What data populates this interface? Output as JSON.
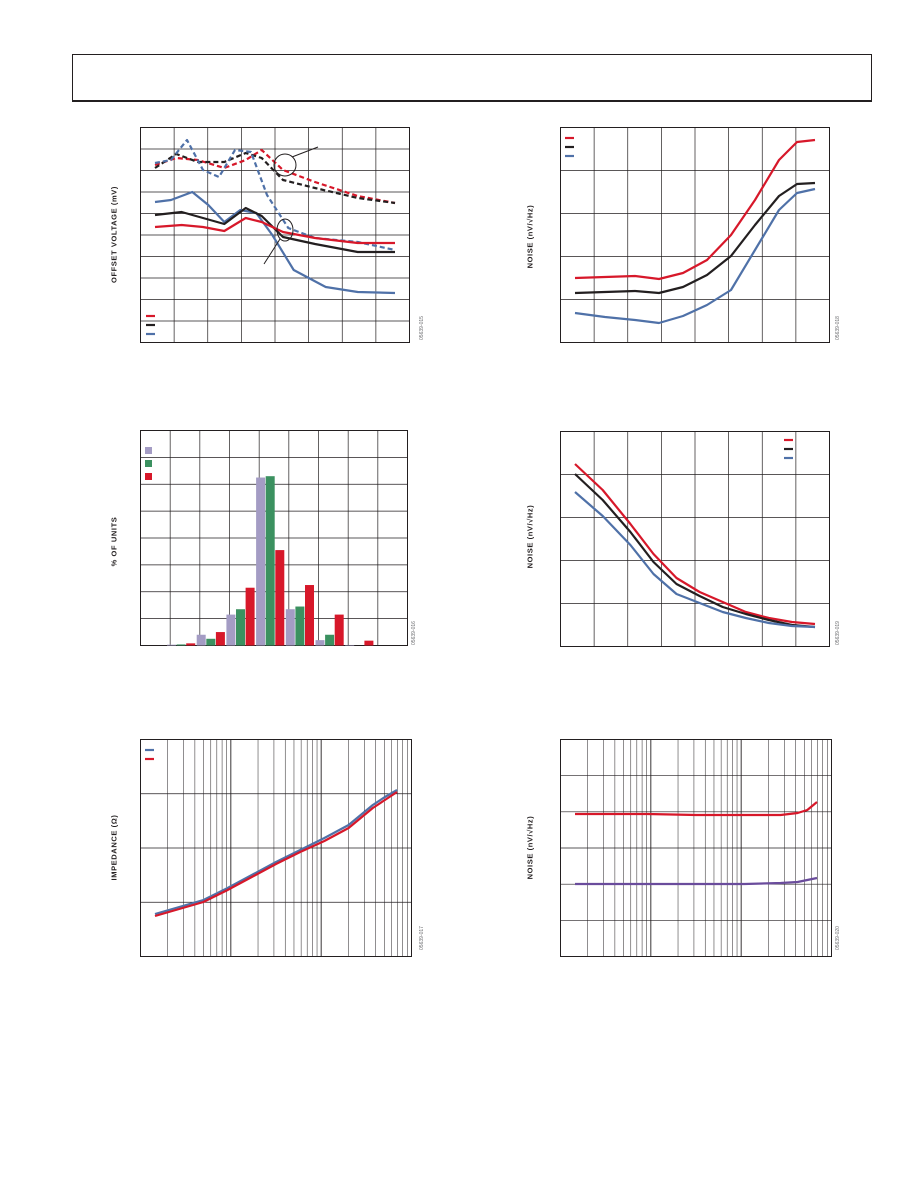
{
  "colors": {
    "red": "#d7182a",
    "black": "#231f20",
    "blue": "#4f71a8",
    "lavender": "#a49cc4",
    "green": "#3b9160",
    "grid": "#231f20",
    "purple": "#6a4c9c"
  },
  "figures": [
    {
      "ylabel": "OFFSET VOLTAGE (mV)",
      "fig_id": "05639-015"
    },
    {
      "ylabel": "NOISE (nV/√Hz)",
      "fig_id": "05639-018"
    },
    {
      "ylabel": "% OF UNITS",
      "fig_id": "05639-016"
    },
    {
      "ylabel": "NOISE (nV/√Hz)",
      "fig_id": "05639-019"
    },
    {
      "ylabel": "IMPEDANCE (Ω)",
      "fig_id": "05639-017"
    },
    {
      "ylabel": "NOISE (nV/√Hz)",
      "fig_id": "05639-020"
    }
  ],
  "chart_data": [
    {
      "type": "line",
      "grid": true,
      "legend": "bottom-left",
      "series": [
        {
          "color": "red",
          "style": "dashed",
          "points": [
            [
              0,
              165
            ],
            [
              4,
              158
            ],
            [
              8,
              160
            ],
            [
              13,
              168
            ],
            [
              17,
              160
            ],
            [
              20,
              150
            ],
            [
              24,
              170
            ],
            [
              30,
              182
            ],
            [
              38,
              196
            ],
            [
              45,
              203
            ]
          ]
        },
        {
          "color": "black",
          "style": "dashed",
          "points": [
            [
              0,
              168
            ],
            [
              4,
              154
            ],
            [
              8,
              162
            ],
            [
              13,
              162
            ],
            [
              17,
              153
            ],
            [
              20,
              158
            ],
            [
              24,
              180
            ],
            [
              30,
              188
            ],
            [
              38,
              198
            ],
            [
              45,
              203
            ]
          ]
        },
        {
          "color": "blue",
          "style": "dashed",
          "points": [
            [
              0,
              163
            ],
            [
              3,
              160
            ],
            [
              6,
              140
            ],
            [
              9,
              170
            ],
            [
              12,
              177
            ],
            [
              15,
              150
            ],
            [
              18,
              152
            ],
            [
              21,
              195
            ],
            [
              25,
              228
            ],
            [
              30,
              238
            ],
            [
              38,
              242
            ],
            [
              45,
              250
            ]
          ]
        },
        {
          "color": "blue",
          "style": "solid",
          "points": [
            [
              0,
              202
            ],
            [
              3,
              200
            ],
            [
              7,
              192
            ],
            [
              10,
              205
            ],
            [
              13,
              222
            ],
            [
              16,
              210
            ],
            [
              19,
              213
            ],
            [
              22,
              235
            ],
            [
              26,
              270
            ],
            [
              32,
              287
            ],
            [
              38,
              292
            ],
            [
              45,
              293
            ]
          ]
        },
        {
          "color": "black",
          "style": "solid",
          "points": [
            [
              0,
              215
            ],
            [
              5,
              212
            ],
            [
              9,
              218
            ],
            [
              13,
              224
            ],
            [
              17,
              208
            ],
            [
              20,
              216
            ],
            [
              24,
              237
            ],
            [
              30,
              244
            ],
            [
              38,
              252
            ],
            [
              45,
              252
            ]
          ]
        },
        {
          "color": "red",
          "style": "solid",
          "points": [
            [
              0,
              227
            ],
            [
              5,
              225
            ],
            [
              9,
              227
            ],
            [
              13,
              231
            ],
            [
              17,
              218
            ],
            [
              20,
              222
            ],
            [
              24,
              232
            ],
            [
              30,
              238
            ],
            [
              38,
              243
            ],
            [
              45,
              243
            ]
          ]
        }
      ]
    },
    {
      "type": "line",
      "grid": true,
      "legend": "top-left",
      "series": [
        {
          "color": "red",
          "points": [
            [
              0,
              278
            ],
            [
              5,
              277
            ],
            [
              10,
              276
            ],
            [
              14,
              279
            ],
            [
              18,
              273
            ],
            [
              22,
              260
            ],
            [
              26,
              235
            ],
            [
              30,
              200
            ],
            [
              34,
              160
            ],
            [
              37,
              142
            ],
            [
              40,
              140
            ]
          ]
        },
        {
          "color": "black",
          "points": [
            [
              0,
              293
            ],
            [
              5,
              292
            ],
            [
              10,
              291
            ],
            [
              14,
              293
            ],
            [
              18,
              287
            ],
            [
              22,
              275
            ],
            [
              26,
              256
            ],
            [
              30,
              225
            ],
            [
              34,
              196
            ],
            [
              37,
              184
            ],
            [
              40,
              183
            ]
          ]
        },
        {
          "color": "blue",
          "points": [
            [
              0,
              313
            ],
            [
              5,
              317
            ],
            [
              10,
              320
            ],
            [
              14,
              323
            ],
            [
              18,
              316
            ],
            [
              22,
              305
            ],
            [
              26,
              290
            ],
            [
              30,
              250
            ],
            [
              34,
              210
            ],
            [
              37,
              193
            ],
            [
              40,
              189
            ]
          ]
        }
      ]
    },
    {
      "type": "bar",
      "grid": true,
      "legend": "top-left",
      "series": [
        {
          "color": "lavender",
          "values": [
            0,
            0,
            4,
            0,
            0,
            0,
            0,
            0,
            0,
            0
          ]
        },
        {
          "color": "green",
          "values": [
            0,
            0,
            0,
            0,
            0,
            0,
            0,
            0,
            0,
            0
          ]
        },
        {
          "color": "red",
          "values": [
            0,
            0,
            0,
            0,
            0,
            0,
            0,
            0,
            0,
            0
          ]
        }
      ],
      "bars": [
        [
          "lavender",
          0.3
        ],
        [
          "green",
          0.4
        ],
        [
          "red",
          0.8
        ],
        [
          "lavender",
          4.0
        ],
        [
          "green",
          2.5
        ],
        [
          "red",
          5.0
        ],
        [
          "lavender",
          11.5
        ],
        [
          "green",
          13.5
        ],
        [
          "red",
          21.5
        ],
        [
          "lavender",
          62.5
        ],
        [
          "green",
          63.0
        ],
        [
          "red",
          35.5
        ],
        [
          "lavender",
          13.5
        ],
        [
          "green",
          14.5
        ],
        [
          "red",
          22.5
        ],
        [
          "lavender",
          2.0
        ],
        [
          "green",
          4.0
        ],
        [
          "red",
          11.5
        ],
        [
          "lavender",
          0.2
        ],
        [
          "green",
          0.0
        ],
        [
          "red",
          1.8
        ]
      ]
    },
    {
      "type": "line",
      "grid": true,
      "legend": "top-right",
      "series": [
        {
          "color": "red",
          "points": [
            [
              0,
              464
            ],
            [
              6,
              490
            ],
            [
              12,
              524
            ],
            [
              17,
              554
            ],
            [
              22,
              578
            ],
            [
              27,
              592
            ],
            [
              32,
              602
            ],
            [
              37,
              612
            ],
            [
              42,
              618
            ],
            [
              47,
              622
            ],
            [
              52,
              624
            ]
          ]
        },
        {
          "color": "black",
          "points": [
            [
              0,
              474
            ],
            [
              6,
              500
            ],
            [
              12,
              532
            ],
            [
              17,
              562
            ],
            [
              22,
              584
            ],
            [
              27,
              596
            ],
            [
              32,
              607
            ],
            [
              37,
              614
            ],
            [
              42,
              620
            ],
            [
              47,
              625
            ],
            [
              52,
              627
            ]
          ]
        },
        {
          "color": "blue",
          "points": [
            [
              0,
              492
            ],
            [
              6,
              516
            ],
            [
              12,
              545
            ],
            [
              17,
              574
            ],
            [
              22,
              594
            ],
            [
              27,
              603
            ],
            [
              32,
              612
            ],
            [
              37,
              618
            ],
            [
              42,
              623
            ],
            [
              47,
              626
            ],
            [
              52,
              627
            ]
          ]
        }
      ]
    },
    {
      "type": "line",
      "grid": true,
      "legend": "top-left",
      "series": [
        {
          "color": "blue",
          "points": [
            [
              0,
              914
            ],
            [
              10,
              907
            ],
            [
              20,
              900
            ],
            [
              30,
              888
            ],
            [
              40,
              875
            ],
            [
              50,
              862
            ],
            [
              60,
              850
            ],
            [
              70,
              838
            ],
            [
              80,
              825
            ],
            [
              85,
              815
            ],
            [
              90,
              805
            ],
            [
              95,
              797
            ],
            [
              100,
              790
            ]
          ]
        },
        {
          "color": "red",
          "points": [
            [
              0,
              916
            ],
            [
              10,
              909
            ],
            [
              20,
              902
            ],
            [
              30,
              890
            ],
            [
              40,
              877
            ],
            [
              50,
              864
            ],
            [
              60,
              852
            ],
            [
              70,
              841
            ],
            [
              80,
              828
            ],
            [
              85,
              818
            ],
            [
              90,
              808
            ],
            [
              95,
              800
            ],
            [
              100,
              792
            ]
          ]
        }
      ]
    },
    {
      "type": "line",
      "grid": true,
      "legend": "none",
      "series": [
        {
          "color": "red",
          "points": [
            [
              0,
              814
            ],
            [
              30,
              814
            ],
            [
              50,
              815
            ],
            [
              70,
              815
            ],
            [
              85,
              815
            ],
            [
              92,
              813
            ],
            [
              96,
              810
            ],
            [
              100,
              802
            ]
          ]
        },
        {
          "color": "purple",
          "points": [
            [
              0,
              884
            ],
            [
              30,
              884
            ],
            [
              50,
              884
            ],
            [
              70,
              884
            ],
            [
              85,
              883
            ],
            [
              92,
              882
            ],
            [
              96,
              880
            ],
            [
              100,
              878
            ]
          ]
        }
      ]
    }
  ]
}
